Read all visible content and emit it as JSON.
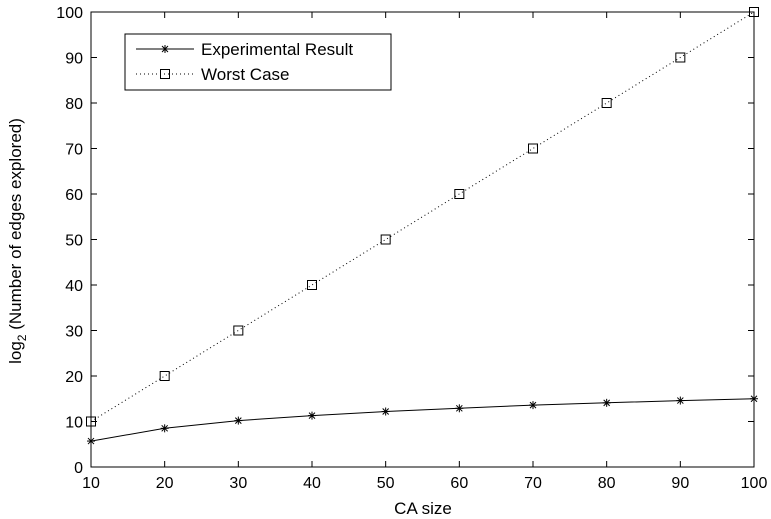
{
  "chart_data": {
    "type": "line",
    "title": "",
    "xlabel": "CA size",
    "ylabel_main": "log",
    "ylabel_sub": "2",
    "ylabel_rest": " (Number of edges explored)",
    "xlim": [
      10,
      100
    ],
    "ylim": [
      0,
      100
    ],
    "xticks": [
      10,
      20,
      30,
      40,
      50,
      60,
      70,
      80,
      90,
      100
    ],
    "yticks": [
      0,
      10,
      20,
      30,
      40,
      50,
      60,
      70,
      80,
      90,
      100
    ],
    "grid": false,
    "legend_position": "top-left",
    "x": [
      10,
      20,
      30,
      40,
      50,
      60,
      70,
      80,
      90,
      100
    ],
    "series": [
      {
        "name": "Experimental Result",
        "line": "solid",
        "marker": "asterisk",
        "values": [
          5.7,
          8.5,
          10.2,
          11.3,
          12.2,
          12.9,
          13.6,
          14.1,
          14.6,
          15.0
        ]
      },
      {
        "name": "Worst Case",
        "line": "dotted",
        "marker": "square",
        "values": [
          10,
          20,
          30,
          40,
          50,
          60,
          70,
          80,
          90,
          100
        ]
      }
    ]
  }
}
